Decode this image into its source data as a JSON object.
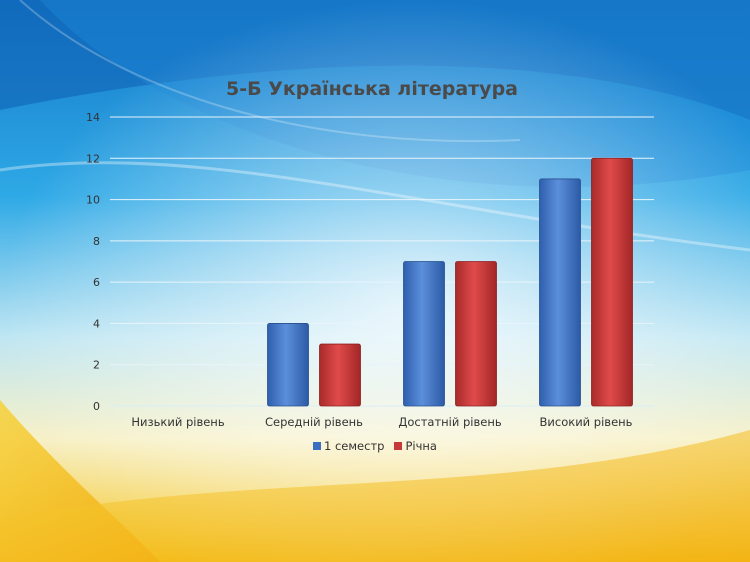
{
  "colors": {
    "series_1": "#3b6fc0",
    "series_2": "#c83838",
    "gridline": "#e8f4fb",
    "tick_text": "#333333"
  },
  "chart_data": {
    "type": "bar",
    "title": "5-Б Українська література",
    "xlabel": "",
    "ylabel": "",
    "categories": [
      "Низький рівень",
      "Середній рівень",
      "Достатній рівень",
      "Високий рівень"
    ],
    "series": [
      {
        "name": "1 семестр",
        "values": [
          0,
          4,
          7,
          11
        ]
      },
      {
        "name": "Річна",
        "values": [
          0,
          3,
          7,
          12
        ]
      }
    ],
    "ylim": [
      0,
      14
    ],
    "yticks": [
      0,
      2,
      4,
      6,
      8,
      10,
      12,
      14
    ],
    "grid": true,
    "legend_position": "bottom"
  }
}
